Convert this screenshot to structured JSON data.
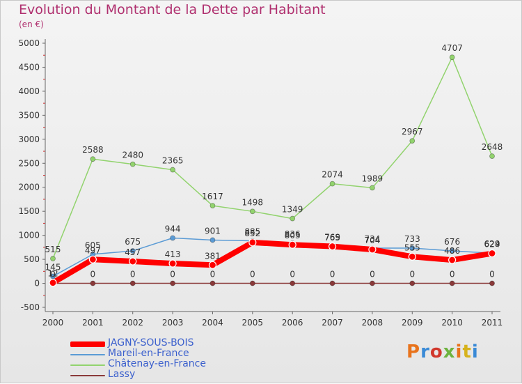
{
  "title": "Evolution du Montant de la Dette par Habitant",
  "subtitle": "(en €)",
  "logo": {
    "text": "Proxiti",
    "colors": [
      "#e8731c",
      "#3a8ad6",
      "#d1372b",
      "#6db33f",
      "#e8731c",
      "#d6b21c",
      "#3a8ad6"
    ]
  },
  "chart_data": {
    "type": "line",
    "x": [
      "2000",
      "2001",
      "2002",
      "2003",
      "2004",
      "2005",
      "2006",
      "2007",
      "2008",
      "2009",
      "2010",
      "2011"
    ],
    "ylim": [
      -500,
      5000
    ],
    "yticks": [
      "-500",
      "0",
      "500",
      "1000",
      "1500",
      "2000",
      "2500",
      "3000",
      "3500",
      "4000",
      "4500",
      "5000"
    ],
    "grid": false,
    "legend_position": "bottom-left",
    "series": [
      {
        "name": "JAGNY-SOUS-BOIS",
        "color": "#ff0000",
        "width": 8,
        "values": [
          12,
          497,
          457,
          413,
          381,
          852,
          803,
          769,
          704,
          555,
          486,
          624
        ],
        "labels": [
          "12",
          "497",
          "457",
          "413",
          "381",
          "852",
          "803",
          "769",
          "704",
          "555",
          "486",
          "624"
        ]
      },
      {
        "name": "Mareil-en-France",
        "color": "#5b9bd5",
        "width": 1.5,
        "values": [
          145,
          605,
          675,
          944,
          901,
          885,
          836,
          765,
          734,
          733,
          676,
          629
        ],
        "labels": [
          "145",
          "605",
          "675",
          "944",
          "901",
          "885",
          "836",
          "765",
          "734",
          "733",
          "676",
          "629"
        ]
      },
      {
        "name": "Châtenay-en-France",
        "color": "#92d36e",
        "width": 1.5,
        "values": [
          515,
          2588,
          2480,
          2365,
          1617,
          1498,
          1349,
          2074,
          1989,
          2967,
          4707,
          2648
        ],
        "labels": [
          "515",
          "2588",
          "2480",
          "2365",
          "1617",
          "1498",
          "1349",
          "2074",
          "1989",
          "2967",
          "4707",
          "2648"
        ]
      },
      {
        "name": "Lassy",
        "color": "#8b3a3a",
        "width": 1.5,
        "values": [
          0,
          0,
          0,
          0,
          0,
          0,
          0,
          0,
          0,
          0,
          0,
          0
        ],
        "labels": [
          "0",
          "0",
          "0",
          "0",
          "0",
          "0",
          "0",
          "0",
          "0",
          "0",
          "0",
          "0"
        ]
      }
    ]
  }
}
